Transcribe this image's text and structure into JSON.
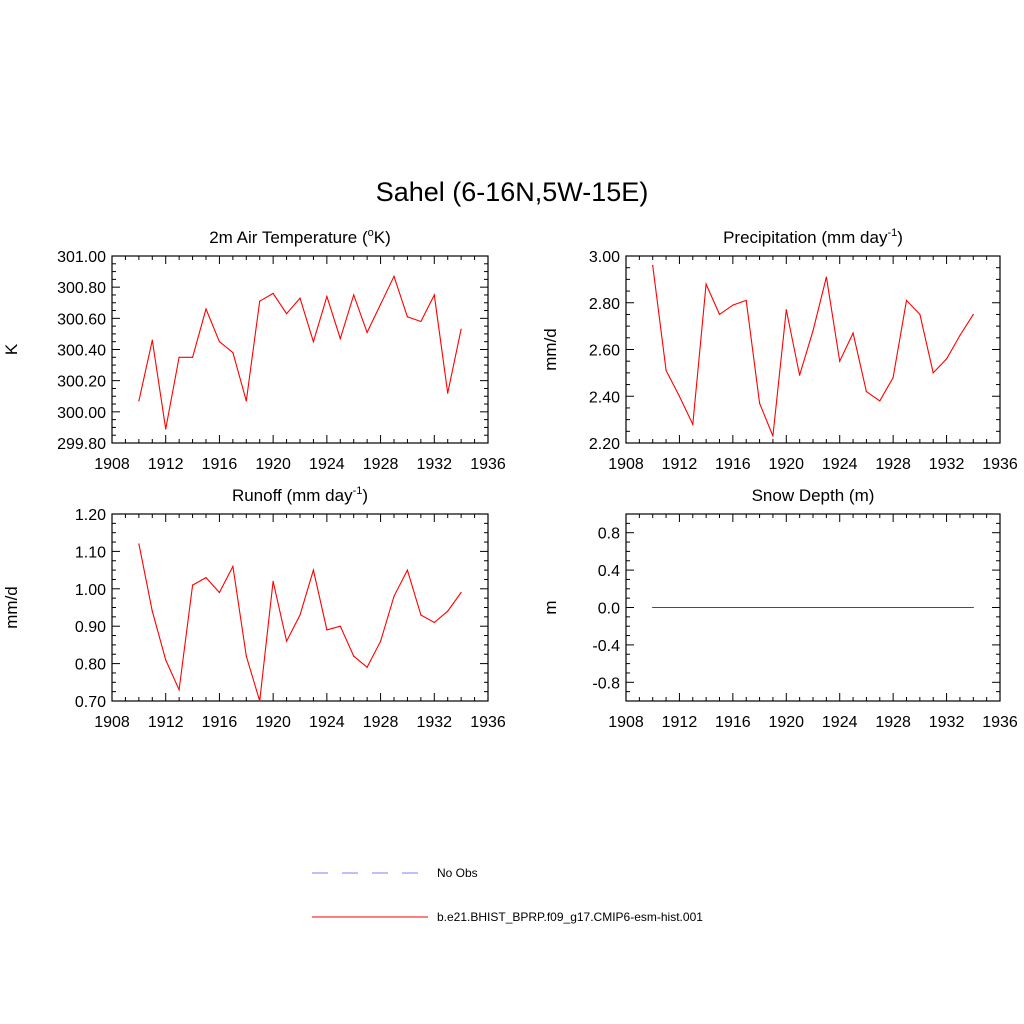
{
  "page": {
    "title": "Sahel (6-16N,5W-15E)"
  },
  "legend": {
    "items": [
      {
        "label": "No Obs",
        "color": "#9999ff",
        "dashed": true
      },
      {
        "label": "b.e21.BHIST_BPRP.f09_g17.CMIP6-esm-hist.001",
        "color": "#ff3333",
        "dashed": false
      }
    ]
  },
  "chart_data": [
    {
      "type": "line",
      "title": "2m Air Temperature (",
      "title_sup": "o",
      "title_after": "K)",
      "ylabel": "K",
      "xlim": [
        1908,
        1936
      ],
      "ylim": [
        299.8,
        301.0
      ],
      "xticks": [
        "1908",
        "1912",
        "1916",
        "1920",
        "1924",
        "1928",
        "1932",
        "1936"
      ],
      "yticks": [
        "299.80",
        "300.00",
        "300.20",
        "300.40",
        "300.60",
        "300.80",
        "301.00"
      ],
      "ytick_values": [
        299.8,
        300.0,
        300.2,
        300.4,
        300.6,
        300.8,
        301.0
      ],
      "series": [
        {
          "color": "#ff0000",
          "x": [
            1910,
            1911,
            1912,
            1913,
            1914,
            1915,
            1916,
            1917,
            1918,
            1919,
            1920,
            1921,
            1922,
            1923,
            1924,
            1925,
            1926,
            1927,
            1928,
            1929,
            1930,
            1931,
            1932,
            1933,
            1934
          ],
          "values": [
            300.07,
            300.46,
            299.89,
            300.35,
            300.35,
            300.66,
            300.45,
            300.38,
            300.07,
            300.71,
            300.76,
            300.63,
            300.73,
            300.45,
            300.74,
            300.47,
            300.75,
            300.51,
            300.69,
            300.87,
            300.61,
            300.58,
            300.75,
            300.12,
            300.53
          ]
        }
      ]
    },
    {
      "type": "line",
      "title": "Precipitation (mm day",
      "title_sup": "-1",
      "title_after": ")",
      "ylabel": "mm/d",
      "xlim": [
        1908,
        1936
      ],
      "ylim": [
        2.2,
        3.0
      ],
      "xticks": [
        "1908",
        "1912",
        "1916",
        "1920",
        "1924",
        "1928",
        "1932",
        "1936"
      ],
      "yticks": [
        "2.20",
        "2.40",
        "2.60",
        "2.80",
        "3.00"
      ],
      "ytick_values": [
        2.2,
        2.4,
        2.6,
        2.8,
        3.0
      ],
      "series": [
        {
          "color": "#ff0000",
          "x": [
            1910,
            1911,
            1912,
            1913,
            1914,
            1915,
            1916,
            1917,
            1918,
            1919,
            1920,
            1921,
            1922,
            1923,
            1924,
            1925,
            1926,
            1927,
            1928,
            1929,
            1930,
            1931,
            1932,
            1933,
            1934
          ],
          "values": [
            2.96,
            2.51,
            2.4,
            2.28,
            2.88,
            2.75,
            2.79,
            2.81,
            2.37,
            2.23,
            2.77,
            2.49,
            2.68,
            2.91,
            2.55,
            2.67,
            2.42,
            2.38,
            2.48,
            2.81,
            2.75,
            2.5,
            2.56,
            2.66,
            2.75
          ]
        }
      ]
    },
    {
      "type": "line",
      "title": "Runoff (mm day",
      "title_sup": "-1",
      "title_after": ")",
      "ylabel": "mm/d",
      "xlim": [
        1908,
        1936
      ],
      "ylim": [
        0.7,
        1.2
      ],
      "xticks": [
        "1908",
        "1912",
        "1916",
        "1920",
        "1924",
        "1928",
        "1932",
        "1936"
      ],
      "yticks": [
        "0.70",
        "0.80",
        "0.90",
        "1.00",
        "1.10",
        "1.20"
      ],
      "ytick_values": [
        0.7,
        0.8,
        0.9,
        1.0,
        1.1,
        1.2
      ],
      "series": [
        {
          "color": "#ff0000",
          "x": [
            1910,
            1911,
            1912,
            1913,
            1914,
            1915,
            1916,
            1917,
            1918,
            1919,
            1920,
            1921,
            1922,
            1923,
            1924,
            1925,
            1926,
            1927,
            1928,
            1929,
            1930,
            1931,
            1932,
            1933,
            1934
          ],
          "values": [
            1.12,
            0.94,
            0.81,
            0.73,
            1.01,
            1.03,
            0.99,
            1.06,
            0.82,
            0.7,
            1.02,
            0.86,
            0.93,
            1.05,
            0.89,
            0.9,
            0.82,
            0.79,
            0.86,
            0.98,
            1.05,
            0.93,
            0.91,
            0.94,
            0.99
          ]
        }
      ]
    },
    {
      "type": "line",
      "title": "Snow Depth (m)",
      "title_sup": "",
      "title_after": "",
      "ylabel": "m",
      "xlim": [
        1908,
        1936
      ],
      "ylim": [
        -1.0,
        1.0
      ],
      "xticks": [
        "1908",
        "1912",
        "1916",
        "1920",
        "1924",
        "1928",
        "1932",
        "1936"
      ],
      "yticks": [
        "-0.8",
        "-0.4",
        "0.0",
        "0.4",
        "0.8"
      ],
      "ytick_values": [
        -0.8,
        -0.4,
        0.0,
        0.4,
        0.8
      ],
      "series": [
        {
          "color": "#ff0000",
          "x": [
            1910,
            1934
          ],
          "values": [
            0.0,
            0.0
          ]
        }
      ]
    }
  ]
}
